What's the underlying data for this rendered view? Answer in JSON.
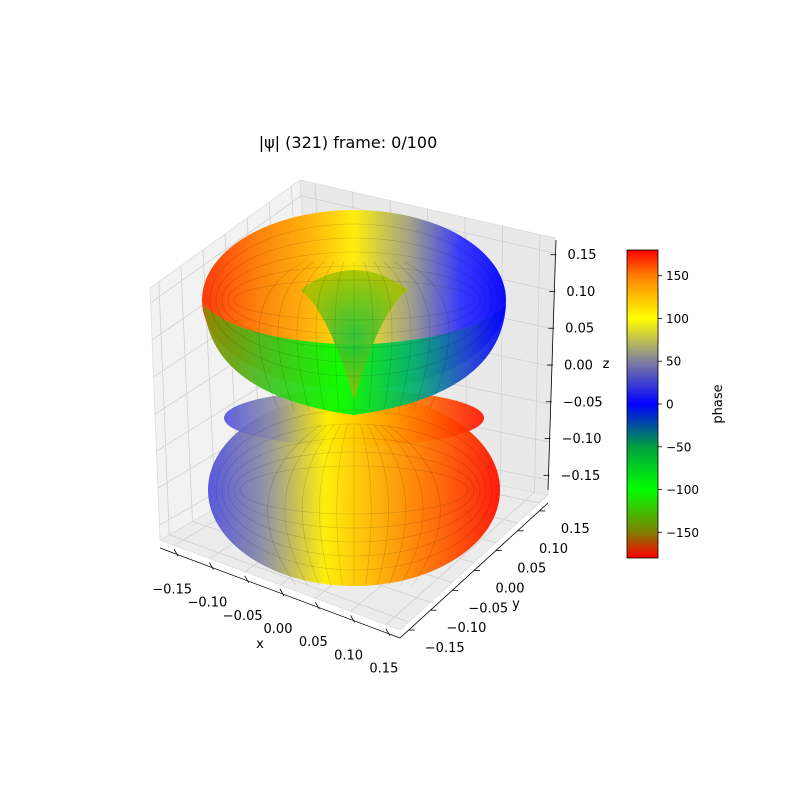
{
  "chart_data": {
    "type": "surface3d",
    "title": "|ψ| (321) frame: 0/100",
    "xlabel": "x",
    "ylabel": "y",
    "zlabel": "z",
    "xlim": [
      -0.17,
      0.17
    ],
    "ylim": [
      -0.17,
      0.17
    ],
    "zlim": [
      -0.17,
      0.17
    ],
    "x_ticks": [
      -0.15,
      -0.1,
      -0.05,
      0.0,
      0.05,
      0.1,
      0.15
    ],
    "y_ticks": [
      -0.15,
      -0.1,
      -0.05,
      0.0,
      0.05,
      0.1,
      0.15
    ],
    "z_ticks": [
      -0.15,
      -0.1,
      -0.05,
      0.0,
      0.05,
      0.1,
      0.15
    ],
    "x_tick_labels": [
      "−0.15",
      "−0.10",
      "−0.05",
      "0.00",
      "0.05",
      "0.10",
      "0.15"
    ],
    "y_tick_labels": [
      "−0.15",
      "−0.10",
      "−0.05",
      "0.00",
      "0.05",
      "0.10",
      "0.15"
    ],
    "z_tick_labels": [
      "−0.15",
      "−0.10",
      "−0.05",
      "0.00",
      "0.05",
      "0.10",
      "0.15"
    ],
    "grid": true,
    "surface": {
      "upper_lobe_phase_range": [
        -180,
        180
      ],
      "lower_lobe_phase_range": [
        -180,
        180
      ],
      "shape": "double-lobed torus (d-orbital, n=3 l=2 m=1)"
    },
    "colorbar": {
      "label": "phase",
      "min": -180,
      "max": 180,
      "ticks": [
        -150,
        -100,
        -50,
        0,
        50,
        100,
        150
      ],
      "tick_labels": [
        "−150",
        "−100",
        "−50",
        "0",
        "50",
        "100",
        "150"
      ],
      "stops": [
        {
          "value": -180,
          "color": "#ff0000"
        },
        {
          "value": -150,
          "color": "#7f7f00"
        },
        {
          "value": -100,
          "color": "#00ff00"
        },
        {
          "value": -50,
          "color": "#00a040"
        },
        {
          "value": 0,
          "color": "#0000ff"
        },
        {
          "value": 50,
          "color": "#8080a0"
        },
        {
          "value": 100,
          "color": "#ffff00"
        },
        {
          "value": 150,
          "color": "#ff8000"
        },
        {
          "value": 180,
          "color": "#ff0000"
        }
      ]
    }
  }
}
